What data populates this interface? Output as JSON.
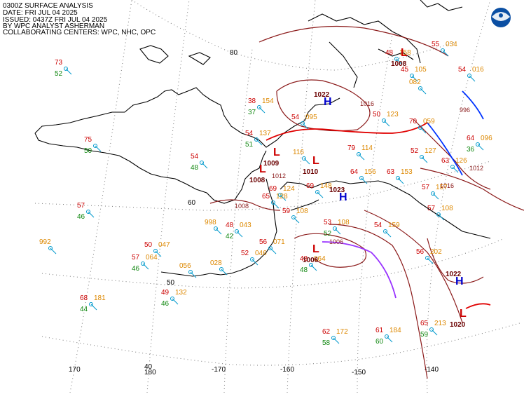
{
  "header": {
    "line1": "0300Z SURFACE ANALYSIS",
    "line2": "DATE: FRI JUL 04 2025",
    "line3": "ISSUED: 0437Z FRI JUL 04 2025",
    "line4": "BY WPC ANALYST ASHERMAN",
    "line5": "COLLABORATING CENTERS: WPC, NHC, OPC"
  },
  "logo": {
    "name": "noaa-logo",
    "text": "NOAA"
  },
  "lat_labels": [
    "80",
    "60",
    "50",
    "40"
  ],
  "lon_labels": [
    "170",
    "180",
    "-170",
    "-160",
    "-150",
    "-140"
  ],
  "pressure_systems": [
    {
      "type": "H",
      "value": "1022"
    },
    {
      "type": "L",
      "value": "1009"
    },
    {
      "type": "L",
      "value": "1008"
    },
    {
      "type": "L",
      "value": "1010"
    },
    {
      "type": "H",
      "value": "1023"
    },
    {
      "type": "L",
      "value": "1006"
    },
    {
      "type": "L",
      "value": "1008"
    },
    {
      "type": "H",
      "value": "1022"
    },
    {
      "type": "L",
      "value": "1020"
    }
  ],
  "isobar_labels": [
    "1016",
    "1012",
    "1008",
    "1016",
    "1012",
    "996",
    "1006"
  ],
  "stations": [
    {
      "t": "73",
      "d": "52",
      "p": ""
    },
    {
      "t": "75",
      "d": "50",
      "p": ""
    },
    {
      "t": "57",
      "d": "46",
      "p": ""
    },
    {
      "t": "",
      "d": "",
      "p": "992"
    },
    {
      "t": "54",
      "d": "48",
      "p": ""
    },
    {
      "t": "38",
      "d": "37",
      "p": "154"
    },
    {
      "t": "54",
      "d": "51",
      "p": "137"
    },
    {
      "t": "54",
      "d": "",
      "p": "095"
    },
    {
      "t": "48",
      "d": "42",
      "p": "043"
    },
    {
      "t": "",
      "d": "",
      "p": "998"
    },
    {
      "t": "50",
      "d": "",
      "p": "047"
    },
    {
      "t": "57",
      "d": "46",
      "p": "064"
    },
    {
      "t": "",
      "d": "",
      "p": "056"
    },
    {
      "t": "",
      "d": "",
      "p": "028"
    },
    {
      "t": "52",
      "d": "",
      "p": "046"
    },
    {
      "t": "56",
      "d": "",
      "p": "071"
    },
    {
      "t": "49",
      "d": "46",
      "p": "132"
    },
    {
      "t": "68",
      "d": "44",
      "p": "181"
    },
    {
      "t": "48",
      "d": "48",
      "p": "064"
    },
    {
      "t": "62",
      "d": "58",
      "p": "172"
    },
    {
      "t": "61",
      "d": "60",
      "p": "184"
    },
    {
      "t": "65",
      "d": "59",
      "p": "213"
    },
    {
      "t": "56",
      "d": "",
      "p": "202"
    },
    {
      "t": "54",
      "d": "",
      "p": "159"
    },
    {
      "t": "53",
      "d": "52",
      "p": "108"
    },
    {
      "t": "69",
      "d": "",
      "p": "148"
    },
    {
      "t": "64",
      "d": "",
      "p": "156"
    },
    {
      "t": "63",
      "d": "",
      "p": "153"
    },
    {
      "t": "57",
      "d": "",
      "p": "157"
    },
    {
      "t": "52",
      "d": "",
      "p": "127"
    },
    {
      "t": "63",
      "d": "",
      "p": "126"
    },
    {
      "t": "64",
      "d": "36",
      "p": "096"
    },
    {
      "t": "70",
      "d": "",
      "p": "059"
    },
    {
      "t": "50",
      "d": "",
      "p": "123"
    },
    {
      "t": "54",
      "d": "",
      "p": "016"
    },
    {
      "t": "55",
      "d": "",
      "p": "034"
    },
    {
      "t": "45",
      "d": "",
      "p": "105"
    },
    {
      "t": "48",
      "d": "",
      "p": "158"
    },
    {
      "t": "57",
      "d": "",
      "p": "108"
    },
    {
      "t": "79",
      "d": "",
      "p": "114"
    },
    {
      "t": "69",
      "d": "",
      "p": "124"
    },
    {
      "t": "59",
      "d": "",
      "p": "108"
    },
    {
      "t": "65",
      "d": "",
      "p": "128"
    },
    {
      "t": "",
      "d": "",
      "p": "116"
    },
    {
      "t": "",
      "d": "",
      "p": "082"
    }
  ],
  "colors": {
    "temp": "#cc0000",
    "dew": "#118811",
    "press": "#dd8800",
    "high": "#0000cc",
    "low": "#cc0000",
    "isobar": "#8b1a1a",
    "grid": "#777777",
    "coast": "#000000",
    "warm_front": "#e00000",
    "cold_front": "#0033ff",
    "occluded_front": "#9933ff",
    "station": "#0099cc"
  }
}
